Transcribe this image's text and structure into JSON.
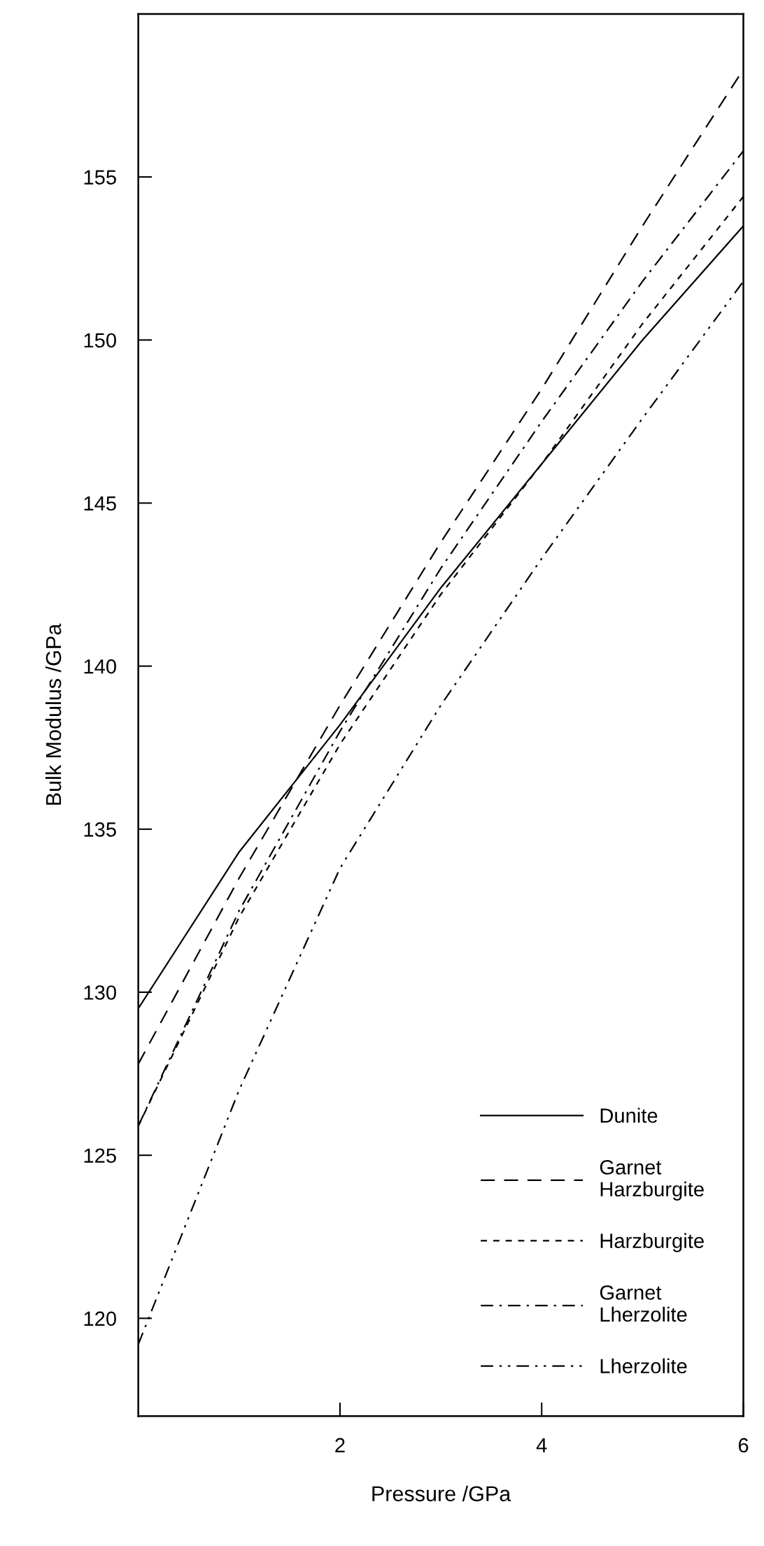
{
  "chart_data": {
    "type": "line",
    "xlabel": "Pressure /GPa",
    "ylabel": "Bulk Modulus /GPa",
    "x": [
      0,
      1,
      2,
      3,
      4,
      5,
      6
    ],
    "xlim": [
      0,
      6
    ],
    "ylim": [
      117,
      160
    ],
    "xticks": [
      2,
      4,
      6
    ],
    "yticks": [
      120,
      125,
      130,
      135,
      140,
      145,
      150,
      155
    ],
    "grid": false,
    "legend": "bottom right",
    "marker": "none",
    "series": [
      {
        "name": "Dunite",
        "color": "#000000",
        "line_style": "solid",
        "values": [
          129.5,
          134.3,
          138.2,
          142.4,
          146.2,
          150.0,
          153.5
        ]
      },
      {
        "name": "Garnet\nHarzburgite",
        "color": "#000000",
        "line_style": "dashed",
        "values": [
          127.8,
          133.5,
          138.8,
          143.8,
          148.5,
          153.5,
          158.3
        ]
      },
      {
        "name": "Harzburgite",
        "color": "#000000",
        "line_style": "short dashed",
        "values": [
          125.9,
          132.3,
          137.6,
          142.2,
          146.2,
          150.5,
          154.4
        ]
      },
      {
        "name": "Garnet\nLherzolite",
        "color": "#000000",
        "line_style": "dashdot",
        "values": [
          125.9,
          132.5,
          138.0,
          143.0,
          147.5,
          151.8,
          155.8
        ]
      },
      {
        "name": "Lherzolite",
        "color": "#000000",
        "line_style": "dashdotdot",
        "values": [
          119.2,
          127.0,
          133.8,
          138.8,
          143.3,
          147.6,
          151.8
        ]
      }
    ]
  }
}
